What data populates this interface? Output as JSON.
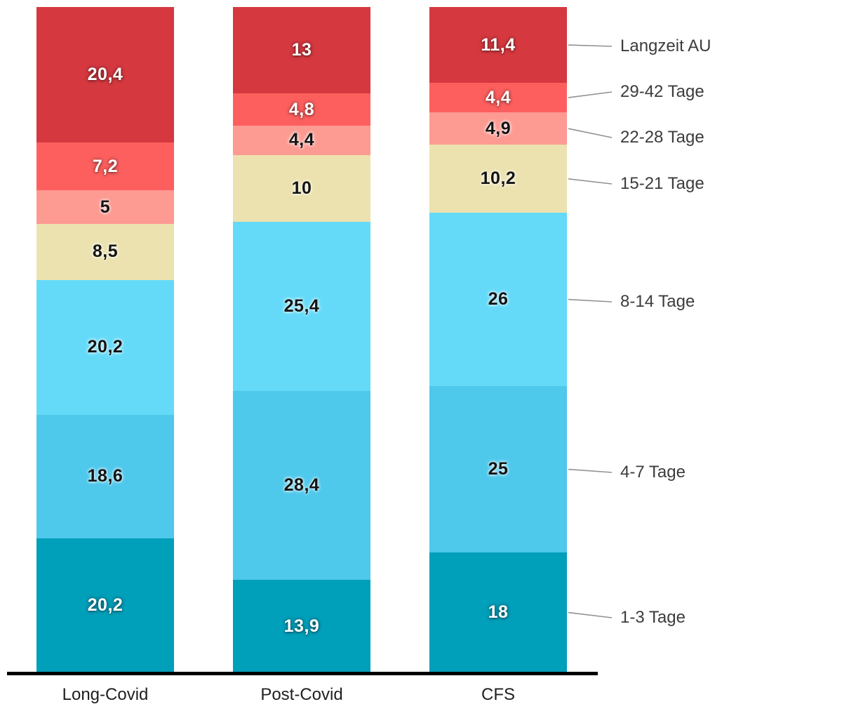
{
  "chart_data": {
    "type": "bar",
    "subtype": "stacked-vertical-percent",
    "title": "",
    "categories": [
      "Long-Covid",
      "Post-Covid",
      "CFS"
    ],
    "series": [
      {
        "name": "1-3 Tage",
        "color": "#009fba",
        "label_style": "light",
        "values": [
          20.2,
          13.9,
          18
        ],
        "labels": [
          "20,2",
          "13,9",
          "18"
        ]
      },
      {
        "name": "4-7 Tage",
        "color": "#4ec8eb",
        "label_style": "dark",
        "values": [
          18.6,
          28.4,
          25
        ],
        "labels": [
          "18,6",
          "28,4",
          "25"
        ]
      },
      {
        "name": "8-14 Tage",
        "color": "#64daf8",
        "label_style": "dark",
        "values": [
          20.2,
          25.4,
          26
        ],
        "labels": [
          "20,2",
          "25,4",
          "26"
        ]
      },
      {
        "name": "15-21 Tage",
        "color": "#ece2af",
        "label_style": "dark",
        "values": [
          8.5,
          10,
          10.2
        ],
        "labels": [
          "8,5",
          "10",
          "10,2"
        ]
      },
      {
        "name": "22-28 Tage",
        "color": "#fd9a92",
        "label_style": "dark",
        "values": [
          5,
          4.4,
          4.9
        ],
        "labels": [
          "5",
          "4,4",
          "4,9"
        ]
      },
      {
        "name": "29-42 Tage",
        "color": "#fd5f5e",
        "label_style": "light",
        "values": [
          7.2,
          4.8,
          4.4
        ],
        "labels": [
          "7,2",
          "4,8",
          "4,4"
        ]
      },
      {
        "name": "Langzeit AU",
        "color": "#d5383f",
        "label_style": "light",
        "values": [
          20.4,
          13,
          11.4
        ],
        "labels": [
          "20,4",
          "13",
          "11,4"
        ]
      }
    ],
    "legend_labels": [
      "Langzeit AU",
      "29-42 Tage",
      "22-28 Tage",
      "15-21 Tage",
      "8-14 Tage",
      "4-7 Tage",
      "1-3 Tage"
    ],
    "legend_position": "right",
    "grid": false,
    "colors": {
      "baseline": "#000000",
      "connector_line": "#919191",
      "legend_text": "#3c3c3c",
      "category_text": "#1f1f1f"
    }
  }
}
